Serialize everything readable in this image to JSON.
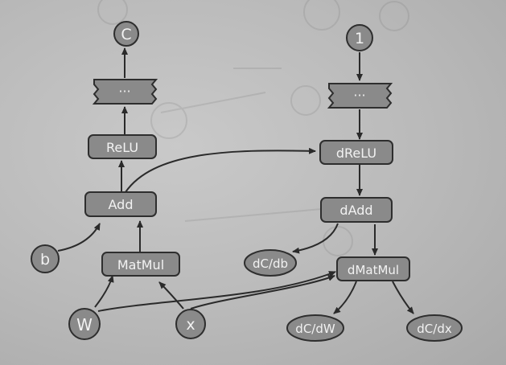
{
  "diagram": {
    "forward": {
      "output": "C",
      "ellipsis": "···",
      "relu": "ReLU",
      "add": "Add",
      "matmul": "MatMul",
      "bias": "b",
      "weight": "W",
      "input": "x"
    },
    "backward": {
      "seed": "1",
      "ellipsis": "···",
      "drelu": "dReLU",
      "dadd": "dAdd",
      "dmatmul": "dMatMul",
      "dcdb": "dC/db",
      "dcdw": "dC/dW",
      "dcdx": "dC/dx"
    }
  },
  "colors": {
    "node_fill": "#8a8a8a",
    "node_stroke": "#2e2e2e",
    "text": "#f2f2f2",
    "edge": "#2a2a2a",
    "background": "#bdbdbd"
  }
}
